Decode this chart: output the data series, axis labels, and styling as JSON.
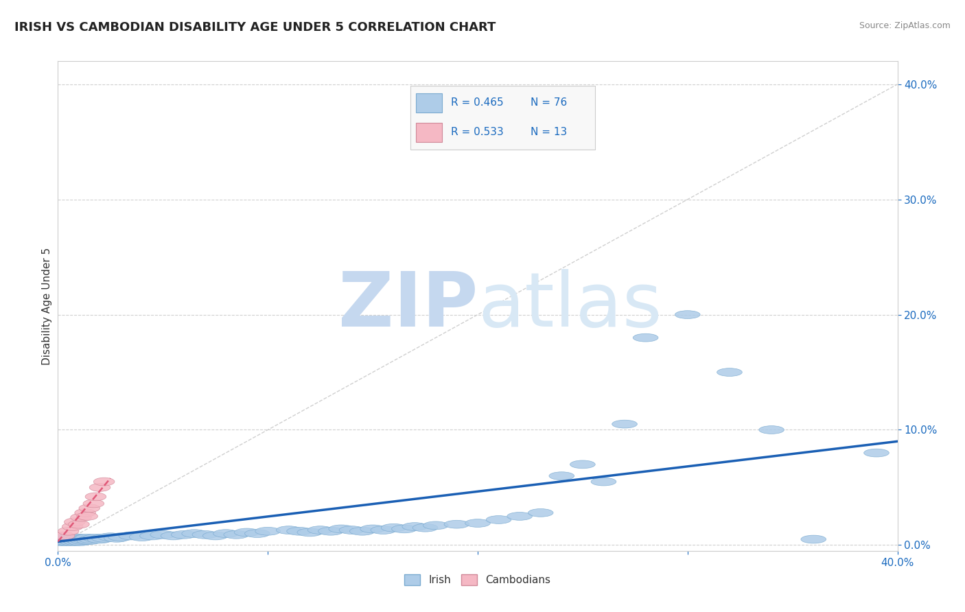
{
  "title": "IRISH VS CAMBODIAN DISABILITY AGE UNDER 5 CORRELATION CHART",
  "source": "Source: ZipAtlas.com",
  "ylabel_label": "Disability Age Under 5",
  "xmin": 0.0,
  "xmax": 0.4,
  "ymin": -0.005,
  "ymax": 0.42,
  "irish_R": 0.465,
  "irish_N": 76,
  "cambodian_R": 0.533,
  "cambodian_N": 13,
  "irish_color": "#aecce8",
  "irish_edge_color": "#7aaad0",
  "irish_line_color": "#1a5fb4",
  "cambodian_color": "#f5b8c4",
  "cambodian_edge_color": "#d08898",
  "cambodian_line_color": "#e05878",
  "diagonal_color": "#bbbbbb",
  "legend_text_color": "#1a6abf",
  "title_fontsize": 13,
  "irish_x": [
    0.001,
    0.002,
    0.002,
    0.003,
    0.003,
    0.004,
    0.004,
    0.005,
    0.005,
    0.006,
    0.006,
    0.007,
    0.007,
    0.008,
    0.008,
    0.009,
    0.009,
    0.01,
    0.01,
    0.011,
    0.011,
    0.012,
    0.013,
    0.014,
    0.015,
    0.016,
    0.018,
    0.02,
    0.022,
    0.025,
    0.028,
    0.03,
    0.035,
    0.04,
    0.045,
    0.05,
    0.055,
    0.06,
    0.065,
    0.07,
    0.075,
    0.08,
    0.085,
    0.09,
    0.095,
    0.1,
    0.11,
    0.115,
    0.12,
    0.125,
    0.13,
    0.135,
    0.14,
    0.145,
    0.15,
    0.155,
    0.16,
    0.165,
    0.17,
    0.175,
    0.18,
    0.19,
    0.2,
    0.21,
    0.22,
    0.23,
    0.24,
    0.25,
    0.26,
    0.27,
    0.28,
    0.3,
    0.32,
    0.34,
    0.36,
    0.39
  ],
  "irish_y": [
    0.003,
    0.004,
    0.005,
    0.003,
    0.006,
    0.004,
    0.006,
    0.003,
    0.005,
    0.004,
    0.006,
    0.003,
    0.005,
    0.004,
    0.006,
    0.003,
    0.005,
    0.004,
    0.006,
    0.003,
    0.005,
    0.004,
    0.005,
    0.006,
    0.004,
    0.005,
    0.006,
    0.005,
    0.006,
    0.007,
    0.006,
    0.007,
    0.008,
    0.007,
    0.008,
    0.009,
    0.008,
    0.009,
    0.01,
    0.009,
    0.008,
    0.01,
    0.009,
    0.011,
    0.01,
    0.012,
    0.013,
    0.012,
    0.011,
    0.013,
    0.012,
    0.014,
    0.013,
    0.012,
    0.014,
    0.013,
    0.015,
    0.014,
    0.016,
    0.015,
    0.017,
    0.018,
    0.019,
    0.022,
    0.025,
    0.028,
    0.06,
    0.07,
    0.055,
    0.105,
    0.18,
    0.2,
    0.15,
    0.1,
    0.005,
    0.08
  ],
  "cambodian_x": [
    0.003,
    0.005,
    0.007,
    0.008,
    0.01,
    0.011,
    0.013,
    0.014,
    0.015,
    0.017,
    0.018,
    0.02,
    0.022
  ],
  "cambodian_y": [
    0.008,
    0.012,
    0.016,
    0.02,
    0.018,
    0.024,
    0.028,
    0.025,
    0.032,
    0.036,
    0.042,
    0.05,
    0.055
  ],
  "irish_trend_x": [
    0.0,
    0.4
  ],
  "irish_trend_y": [
    0.003,
    0.09
  ],
  "cambodian_trend_x": [
    0.0,
    0.025
  ],
  "cambodian_trend_y": [
    0.003,
    0.058
  ],
  "yticks": [
    0.0,
    0.1,
    0.2,
    0.3,
    0.4
  ],
  "xticks_show": [
    0.0,
    0.4
  ]
}
